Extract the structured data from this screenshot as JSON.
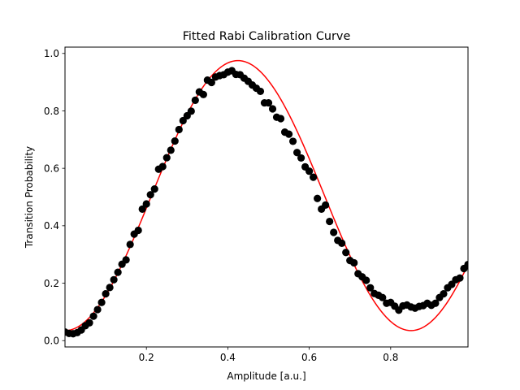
{
  "chart_data": {
    "type": "scatter",
    "title": "Fitted Rabi Calibration Curve",
    "xlabel": "Amplitude [a.u.]",
    "ylabel": "Transition Probability",
    "xlim": [
      0.0,
      0.99
    ],
    "ylim": [
      -0.022,
      1.022
    ],
    "grid": false,
    "x_ticks": [
      {
        "value": 0.2,
        "label": "0.2"
      },
      {
        "value": 0.4,
        "label": "0.4"
      },
      {
        "value": 0.6,
        "label": "0.6"
      },
      {
        "value": 0.8,
        "label": "0.8"
      }
    ],
    "y_ticks": [
      {
        "value": 0.0,
        "label": "0.0"
      },
      {
        "value": 0.2,
        "label": "0.2"
      },
      {
        "value": 0.4,
        "label": "0.4"
      },
      {
        "value": 0.6,
        "label": "0.6"
      },
      {
        "value": 0.8,
        "label": "0.8"
      },
      {
        "value": 1.0,
        "label": "1.0"
      }
    ],
    "series": [
      {
        "kind": "scatter",
        "color": "#000000",
        "x": [
          0.0,
          0.01,
          0.02,
          0.03,
          0.04,
          0.05,
          0.06,
          0.07,
          0.08,
          0.09,
          0.1,
          0.11,
          0.12,
          0.13,
          0.14,
          0.15,
          0.16,
          0.17,
          0.18,
          0.19,
          0.2,
          0.21,
          0.22,
          0.23,
          0.24,
          0.25,
          0.26,
          0.27,
          0.28,
          0.29,
          0.3,
          0.31,
          0.32,
          0.33,
          0.34,
          0.35,
          0.36,
          0.37,
          0.38,
          0.39,
          0.4,
          0.41,
          0.42,
          0.43,
          0.44,
          0.45,
          0.46,
          0.47,
          0.48,
          0.49,
          0.5,
          0.51,
          0.52,
          0.53,
          0.54,
          0.55,
          0.56,
          0.57,
          0.58,
          0.59,
          0.6,
          0.61,
          0.62,
          0.63,
          0.64,
          0.65,
          0.66,
          0.67,
          0.68,
          0.69,
          0.7,
          0.71,
          0.72,
          0.73,
          0.74,
          0.75,
          0.76,
          0.77,
          0.78,
          0.79,
          0.8,
          0.81,
          0.82,
          0.83,
          0.84,
          0.85,
          0.86,
          0.87,
          0.88,
          0.89,
          0.9,
          0.91,
          0.92,
          0.93,
          0.94,
          0.95,
          0.96,
          0.97,
          0.98,
          0.99
        ],
        "y": [
          0.03,
          0.025,
          0.024,
          0.028,
          0.037,
          0.052,
          0.062,
          0.085,
          0.108,
          0.133,
          0.163,
          0.185,
          0.212,
          0.238,
          0.266,
          0.281,
          0.335,
          0.371,
          0.384,
          0.458,
          0.476,
          0.508,
          0.528,
          0.597,
          0.606,
          0.637,
          0.663,
          0.695,
          0.735,
          0.766,
          0.783,
          0.799,
          0.837,
          0.866,
          0.857,
          0.907,
          0.899,
          0.918,
          0.923,
          0.926,
          0.935,
          0.94,
          0.927,
          0.926,
          0.914,
          0.903,
          0.89,
          0.879,
          0.868,
          0.828,
          0.828,
          0.807,
          0.778,
          0.773,
          0.726,
          0.719,
          0.694,
          0.655,
          0.636,
          0.605,
          0.59,
          0.569,
          0.495,
          0.458,
          0.472,
          0.415,
          0.377,
          0.349,
          0.339,
          0.307,
          0.279,
          0.271,
          0.233,
          0.222,
          0.21,
          0.184,
          0.164,
          0.158,
          0.15,
          0.13,
          0.133,
          0.12,
          0.106,
          0.121,
          0.124,
          0.117,
          0.113,
          0.119,
          0.122,
          0.13,
          0.123,
          0.13,
          0.15,
          0.163,
          0.184,
          0.196,
          0.212,
          0.218,
          0.251,
          0.265
        ]
      },
      {
        "kind": "fit-line",
        "color": "#ff0000",
        "model": "y = offset + amplitude * sin^2(pi * x / period)",
        "amplitude": 0.94,
        "offset": 0.035,
        "period": 0.85
      }
    ]
  }
}
